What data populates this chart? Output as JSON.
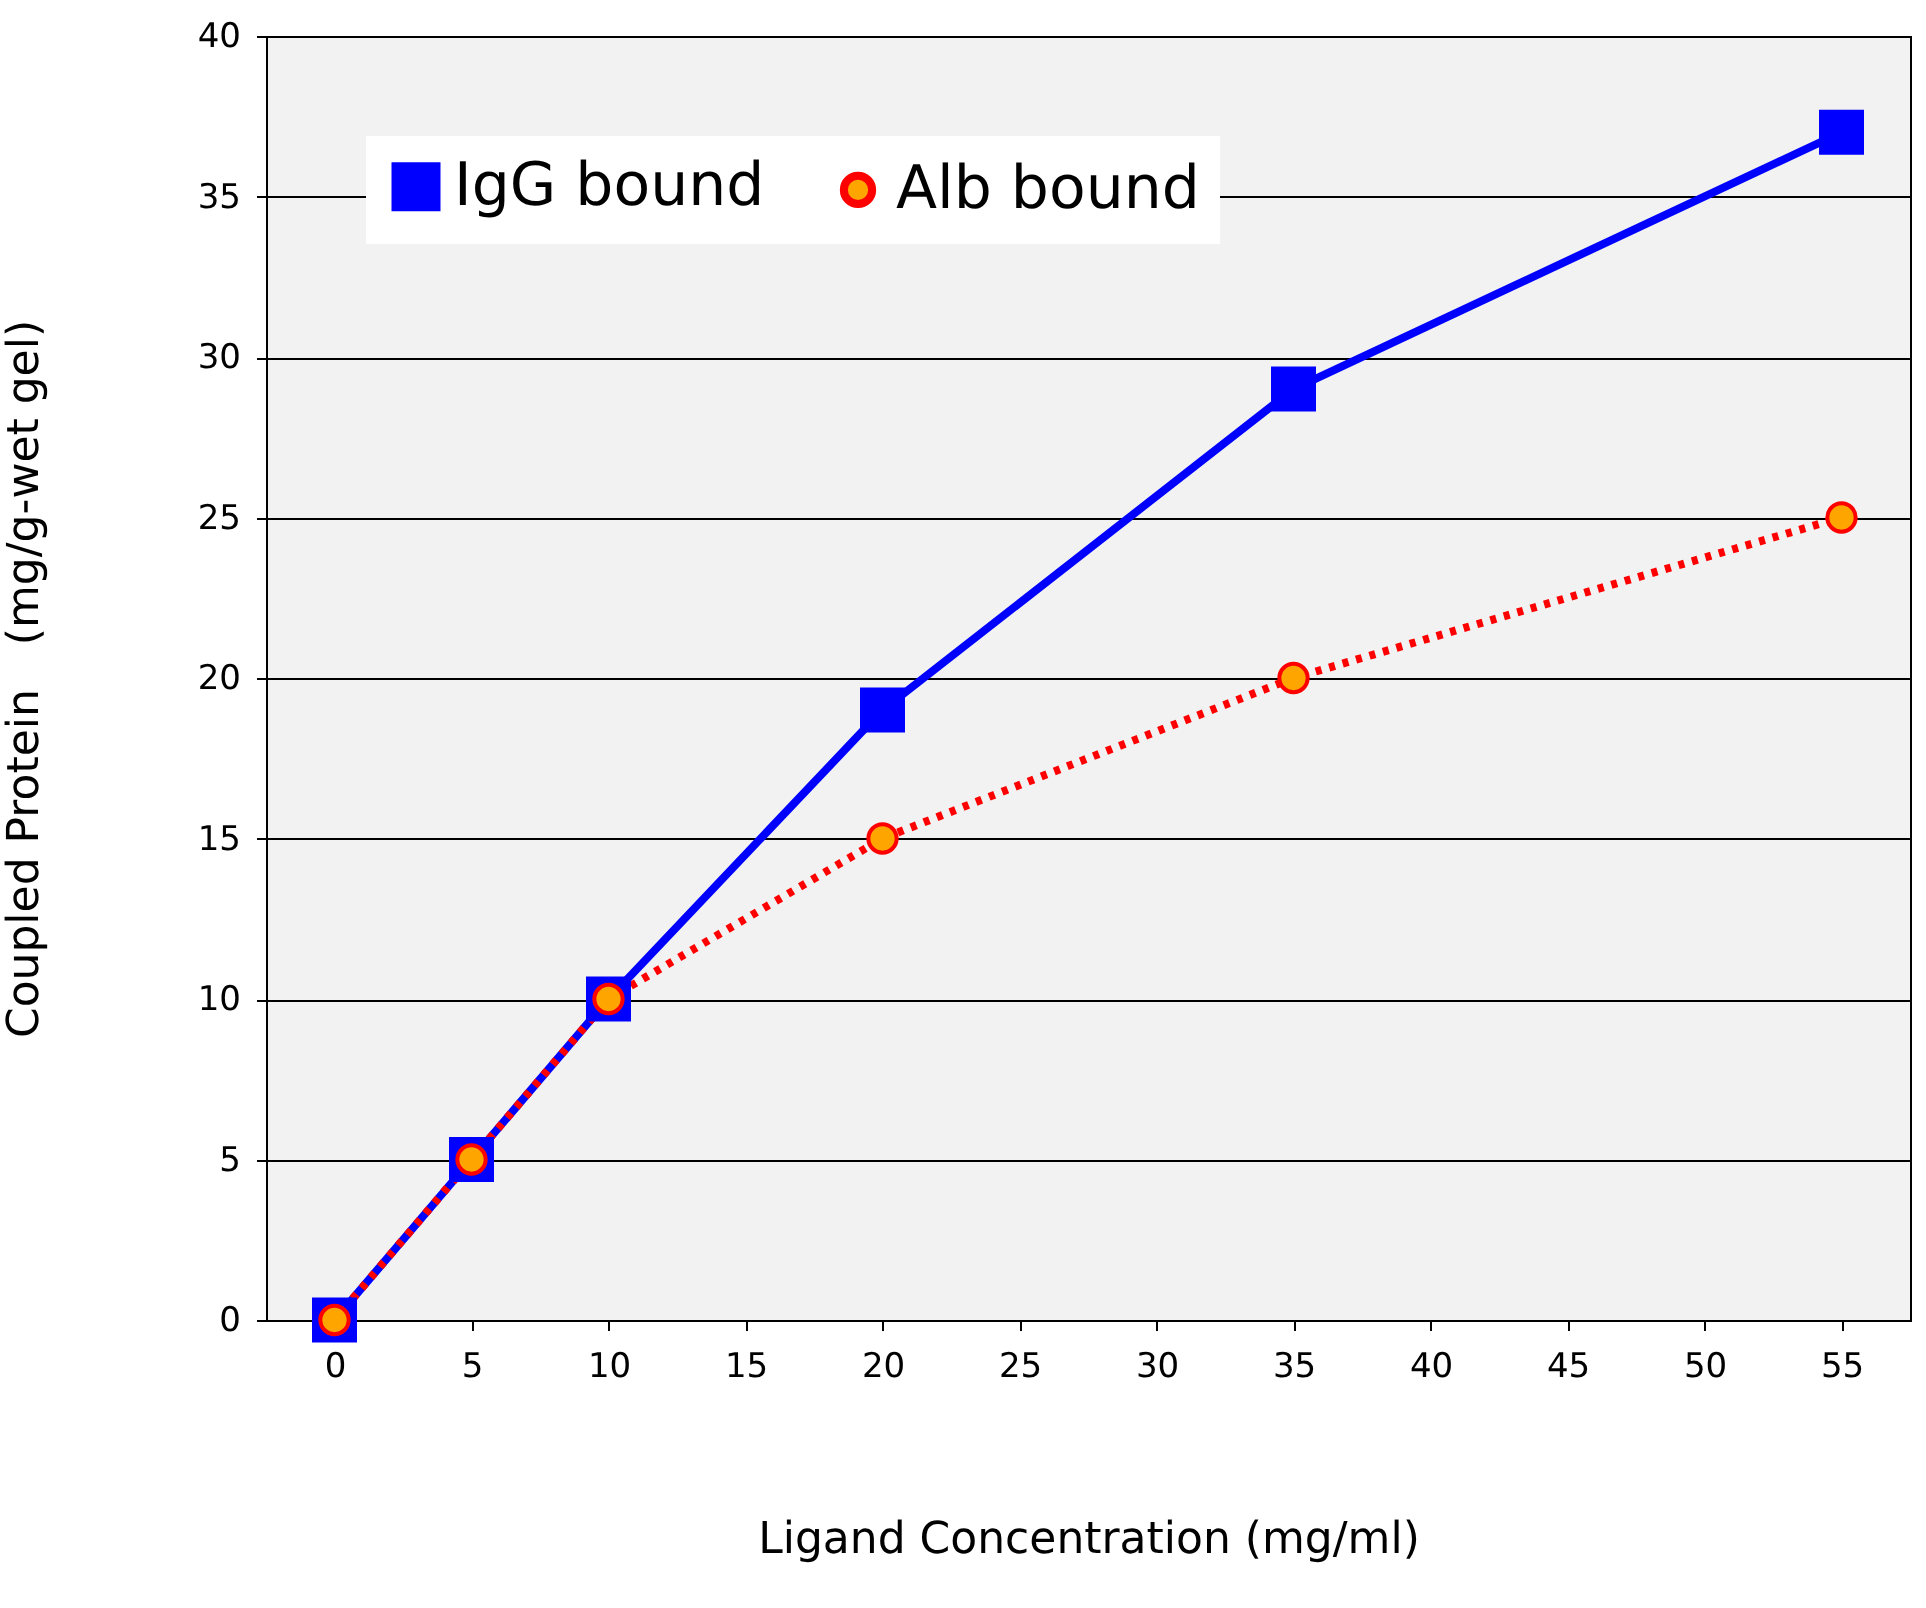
{
  "chart_data": {
    "type": "line",
    "xlabel": "Ligand Concentration (mg/ml)",
    "ylabel": "Coupled Protein　(mg/g-wet gel)",
    "x": [
      0,
      5,
      10,
      20,
      35,
      55
    ],
    "series": [
      {
        "name": "IgG bound",
        "color": "#0000ff",
        "values": [
          0,
          5,
          10,
          19,
          29,
          37
        ],
        "marker": "square",
        "line_style": "solid"
      },
      {
        "name": "Alb bound",
        "color": "#ff0000",
        "values": [
          0,
          5,
          10,
          15,
          20,
          25
        ],
        "marker": "circle",
        "line_style": "dotted"
      }
    ],
    "xlim": [
      -2.5,
      57.5
    ],
    "xticks": [
      0,
      5,
      10,
      15,
      20,
      25,
      30,
      35,
      40,
      45,
      50,
      55
    ],
    "ylim": [
      0,
      40
    ],
    "yticks": [
      0,
      5,
      10,
      15,
      20,
      25,
      30,
      35,
      40
    ],
    "grid": "y",
    "legend": "top left"
  }
}
